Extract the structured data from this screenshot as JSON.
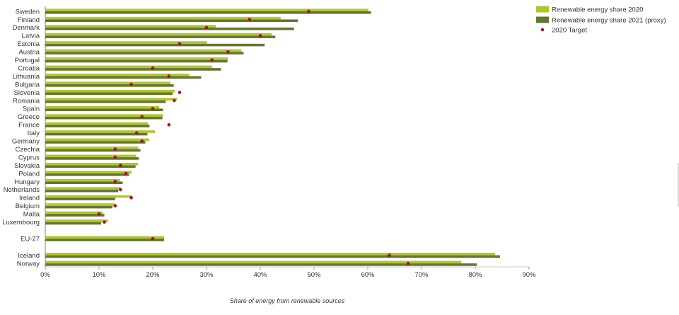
{
  "colors": {
    "bar_2020": "#b5c42e",
    "bar_2021": "#627730",
    "target": "#a3112e"
  },
  "chart_data": {
    "type": "bar",
    "orientation": "horizontal",
    "xlabel": "Share of energy from renewable sources",
    "xlim": [
      0,
      90
    ],
    "xticks": [
      0,
      10,
      20,
      30,
      40,
      50,
      60,
      70,
      80,
      90
    ],
    "xtick_format": "percent",
    "legend": {
      "position": "top-right"
    },
    "categories": [
      "Sweden",
      "Finland",
      "Denmark",
      "Latvia",
      "Estonia",
      "Austria",
      "Portugal",
      "Croatia",
      "Lithuania",
      "Bulgaria",
      "Slovenia",
      "Romania",
      "Spain",
      "Greece",
      "France",
      "Italy",
      "Germany",
      "Czechia",
      "Cyprus",
      "Slovakia",
      "Poland",
      "Hungary",
      "Netherlands",
      "Ireland",
      "Belgium",
      "Malta",
      "Luxembourg",
      "EU-27",
      "Iceland",
      "Norway"
    ],
    "series": [
      {
        "name": "Renewable energy share 2020",
        "kind": "bar",
        "color": "#b5c42e",
        "values": [
          60.1,
          43.8,
          31.7,
          42.1,
          30.1,
          36.5,
          34.0,
          31.0,
          26.8,
          23.3,
          24.1,
          24.5,
          21.2,
          21.9,
          19.1,
          20.4,
          19.3,
          17.3,
          16.9,
          17.3,
          16.1,
          13.9,
          14.0,
          16.2,
          13.0,
          10.7,
          11.7,
          22.1,
          83.7,
          77.4
        ]
      },
      {
        "name": "Renewable energy share 2021 (proxy)",
        "kind": "bar",
        "color": "#627730",
        "values": [
          60.6,
          47.0,
          46.3,
          42.8,
          40.8,
          36.9,
          33.9,
          32.7,
          29.0,
          23.9,
          23.7,
          22.4,
          21.9,
          21.8,
          19.4,
          19.0,
          18.6,
          17.7,
          17.4,
          16.8,
          15.6,
          14.4,
          13.6,
          13.0,
          12.5,
          11.0,
          10.4,
          22.1,
          84.6,
          80.3
        ]
      },
      {
        "name": "2020 Target",
        "kind": "point",
        "color": "#a3112e",
        "values": [
          49,
          38,
          30,
          40,
          25,
          34,
          31,
          20,
          23,
          16,
          25,
          24,
          20,
          18,
          23,
          17,
          18,
          13,
          13,
          14,
          15,
          13,
          14,
          16,
          13,
          10,
          11,
          20,
          64,
          67.5
        ]
      }
    ]
  }
}
